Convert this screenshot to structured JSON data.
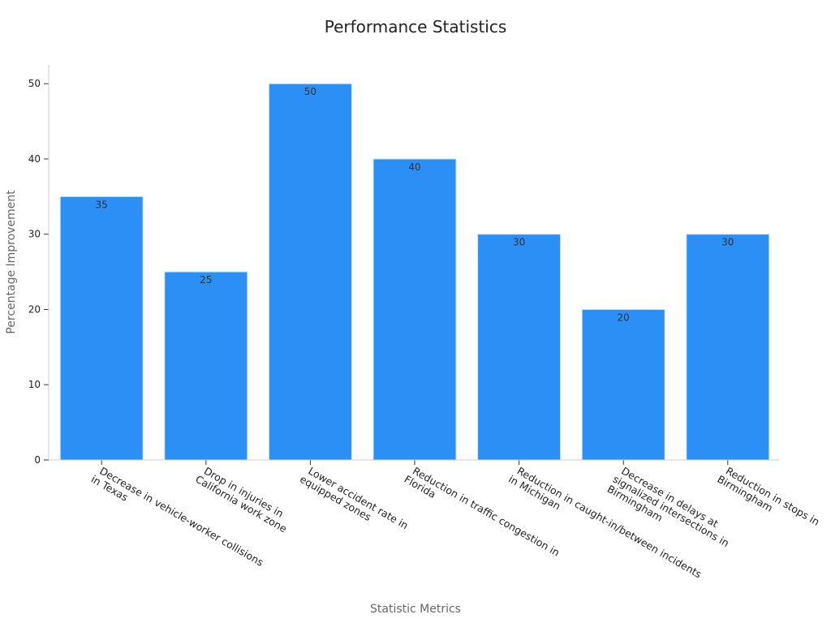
{
  "chart_data": {
    "type": "bar",
    "title": "Performance Statistics",
    "xlabel": "Statistic Metrics",
    "ylabel": "Percentage Improvement",
    "categories": [
      [
        "Decrease in vehicle-worker collisions",
        "in Texas"
      ],
      [
        "Drop in injuries in",
        "California work zone"
      ],
      [
        "Lower accident rate in",
        "equipped zones"
      ],
      [
        "Reduction in traffic congestion in",
        "Florida"
      ],
      [
        "Reduction in caught-in/between incidents",
        "in Michigan"
      ],
      [
        "Decrease in delays at",
        "signalized intersections in",
        "Birmingham"
      ],
      [
        "Reduction in stops in",
        "Birmingham"
      ]
    ],
    "values": [
      35,
      25,
      50,
      40,
      30,
      20,
      30
    ],
    "data_labels": [
      "35",
      "25",
      "50",
      "40",
      "30",
      "20",
      "30"
    ],
    "yticks": [
      0,
      10,
      20,
      30,
      40,
      50
    ],
    "ylim": [
      0,
      52.5
    ],
    "bar_color": "#2b8ff5",
    "bar_edge_color": "#d0e4fb",
    "grid": false,
    "legend": "none"
  }
}
